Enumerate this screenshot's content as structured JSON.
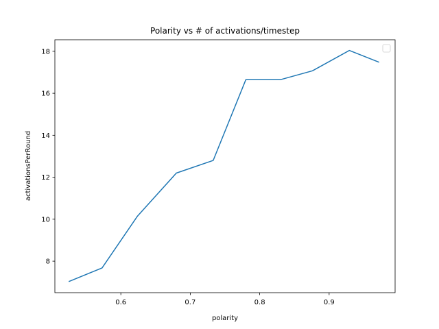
{
  "chart_data": {
    "type": "line",
    "title": "Polarity vs # of activations/timestep",
    "xlabel": "polarity",
    "ylabel": "activationsPerRound",
    "xlim": [
      0.505,
      0.995
    ],
    "ylim": [
      6.5,
      18.55
    ],
    "xticks": [
      0.6,
      0.7,
      0.8,
      0.9
    ],
    "xtick_labels": [
      "0.6",
      "0.7",
      "0.8",
      "0.9"
    ],
    "yticks": [
      8,
      10,
      12,
      14,
      16,
      18
    ],
    "ytick_labels": [
      "8",
      "10",
      "12",
      "14",
      "16",
      "18"
    ],
    "grid": false,
    "legend": "upper right (empty)",
    "series": [
      {
        "color": "#1f77b4",
        "x": [
          0.525,
          0.573,
          0.624,
          0.68,
          0.733,
          0.78,
          0.83,
          0.876,
          0.929,
          0.972
        ],
        "y": [
          7.03,
          7.68,
          10.15,
          12.2,
          12.8,
          16.65,
          16.65,
          17.07,
          18.04,
          17.48
        ]
      }
    ]
  }
}
